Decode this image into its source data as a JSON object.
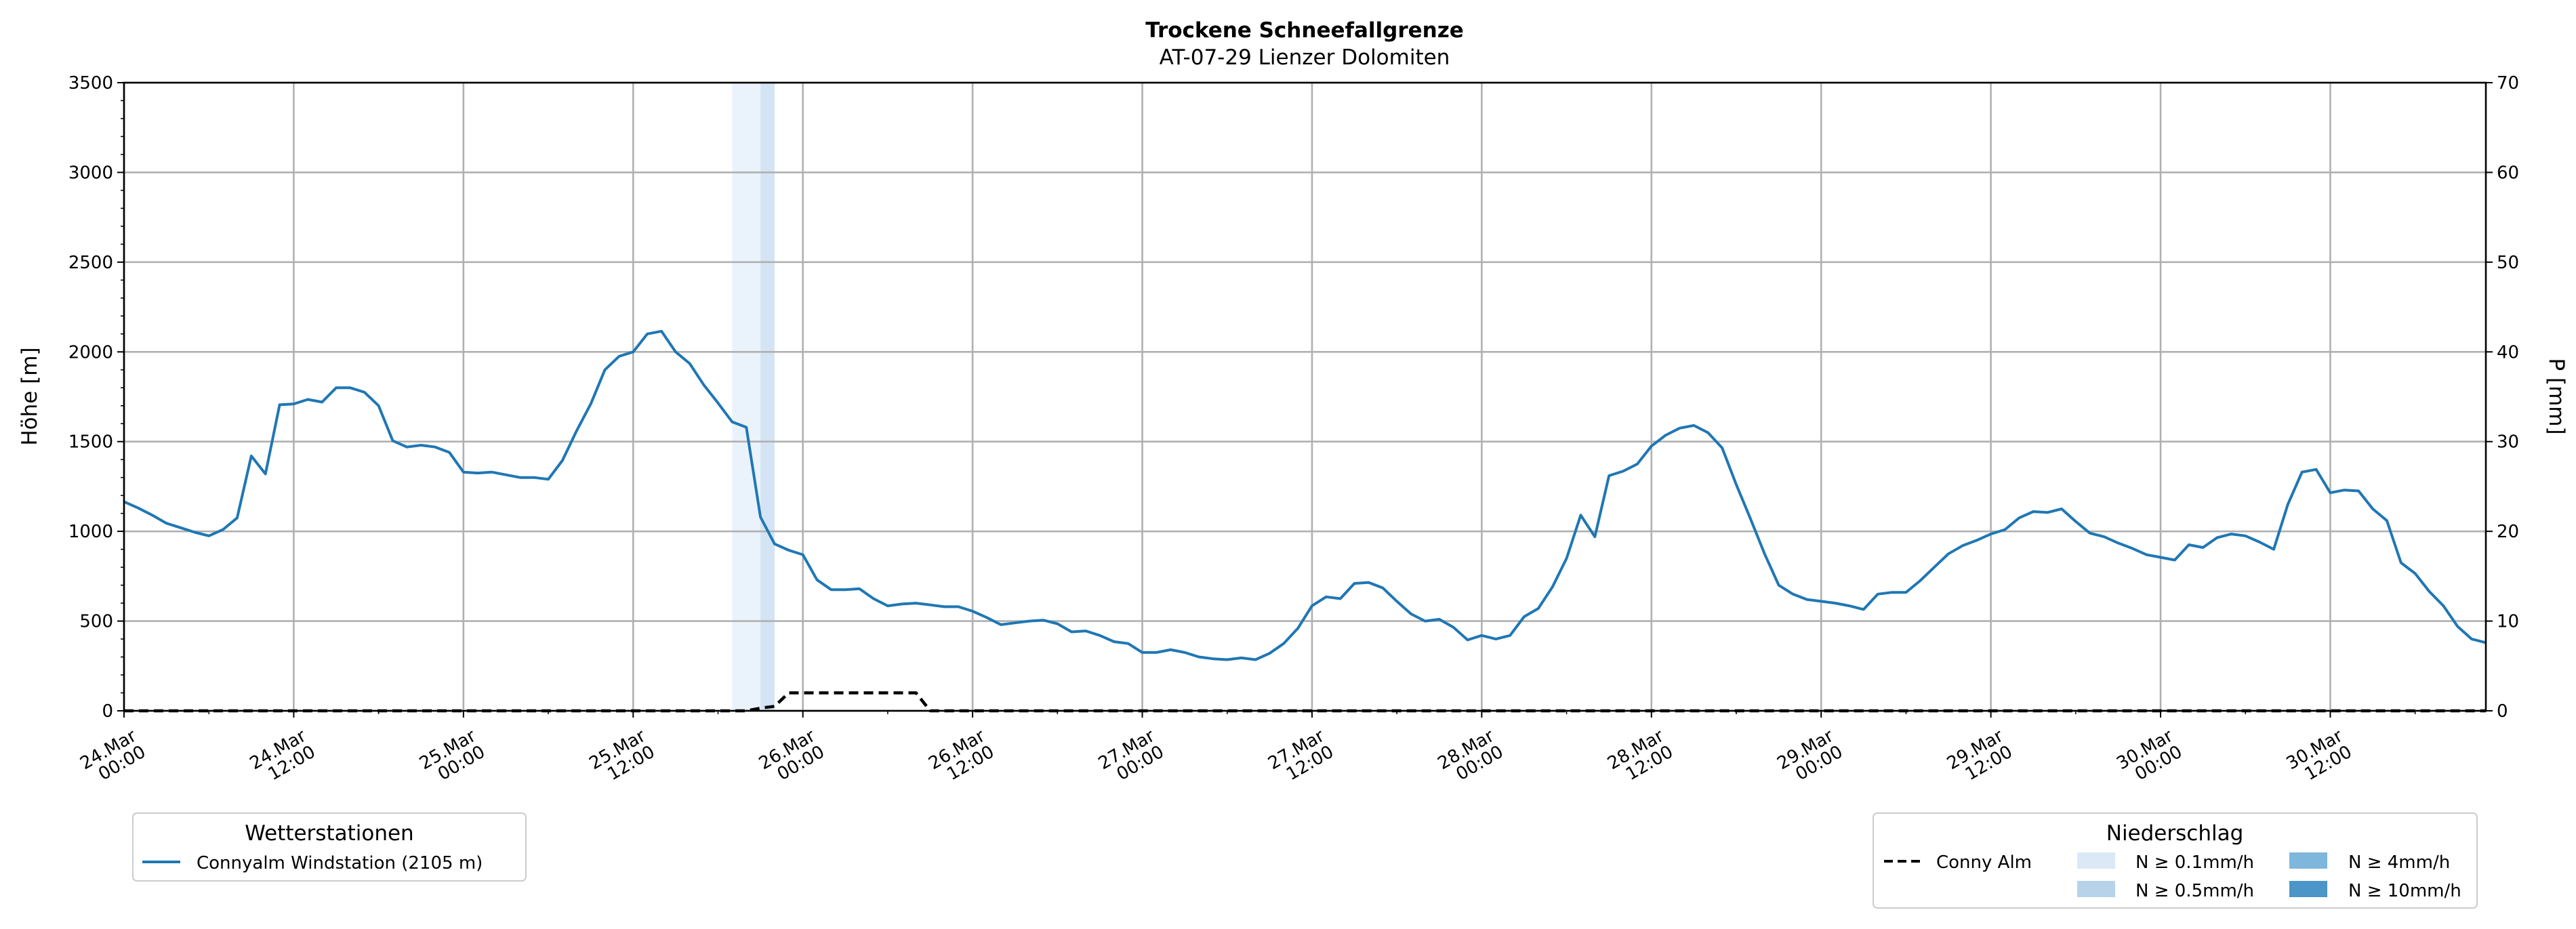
{
  "chart_data": {
    "type": "line",
    "title": "Trockene Schneefallgrenze",
    "subtitle": "AT-07-29 Lienzer Dolomiten",
    "ylabel": "Höhe [m]",
    "y2label": "P [mm]",
    "ylim": [
      0,
      3500
    ],
    "y2lim": [
      0,
      70
    ],
    "yticks": [
      0,
      500,
      1000,
      1500,
      2000,
      2500,
      3000,
      3500
    ],
    "y2ticks": [
      0,
      10,
      20,
      30,
      40,
      50,
      60,
      70
    ],
    "xlim": [
      0,
      167
    ],
    "x_unit": "hours since 24.Mar 00:00",
    "xticks": [
      {
        "x": 0,
        "l1": "24.Mar",
        "l2": "00:00"
      },
      {
        "x": 12,
        "l1": "24.Mar",
        "l2": "12:00"
      },
      {
        "x": 24,
        "l1": "25.Mar",
        "l2": "00:00"
      },
      {
        "x": 36,
        "l1": "25.Mar",
        "l2": "12:00"
      },
      {
        "x": 48,
        "l1": "26.Mar",
        "l2": "00:00"
      },
      {
        "x": 60,
        "l1": "26.Mar",
        "l2": "12:00"
      },
      {
        "x": 72,
        "l1": "27.Mar",
        "l2": "00:00"
      },
      {
        "x": 84,
        "l1": "27.Mar",
        "l2": "12:00"
      },
      {
        "x": 96,
        "l1": "28.Mar",
        "l2": "00:00"
      },
      {
        "x": 108,
        "l1": "28.Mar",
        "l2": "12:00"
      },
      {
        "x": 120,
        "l1": "29.Mar",
        "l2": "00:00"
      },
      {
        "x": 132,
        "l1": "29.Mar",
        "l2": "12:00"
      },
      {
        "x": 144,
        "l1": "30.Mar",
        "l2": "00:00"
      },
      {
        "x": 156,
        "l1": "30.Mar",
        "l2": "12:00"
      }
    ],
    "grid": true,
    "series": [
      {
        "name": "Connyalm Windstation (2105 m)",
        "axis": "left",
        "color": "#1f77b4",
        "style": "solid",
        "x": [
          0,
          1,
          2,
          3,
          4,
          5,
          6,
          7,
          8,
          9,
          10,
          11,
          12,
          13,
          14,
          15,
          16,
          17,
          18,
          19,
          20,
          21,
          22,
          23,
          24,
          25,
          26,
          27,
          28,
          29,
          30,
          31,
          32,
          33,
          34,
          35,
          36,
          37,
          38,
          39,
          40,
          41,
          42,
          43,
          44,
          45,
          46,
          47,
          48,
          49,
          50,
          51,
          52,
          53,
          54,
          55,
          56,
          57,
          58,
          59,
          60,
          61,
          62,
          63,
          64,
          65,
          66,
          67,
          68,
          69,
          70,
          71,
          72,
          73,
          74,
          75,
          76,
          77,
          78,
          79,
          80,
          81,
          82,
          83,
          84,
          85,
          86,
          87,
          88,
          89,
          90,
          91,
          92,
          93,
          94,
          95,
          96,
          97,
          98,
          99,
          100,
          101,
          102,
          103,
          104,
          105,
          106,
          107,
          108,
          109,
          110,
          111,
          112,
          113,
          114,
          115,
          116,
          117,
          118,
          119,
          120,
          121,
          122,
          123,
          124,
          125,
          126,
          127,
          128,
          129,
          130,
          131,
          132,
          133,
          134,
          135,
          136,
          137,
          138,
          139,
          140,
          141,
          142,
          143,
          144,
          145,
          146,
          147,
          148,
          149,
          150,
          151,
          152,
          153,
          154,
          155,
          156,
          157,
          158,
          159,
          160,
          161,
          162,
          163,
          164,
          165,
          166,
          167
        ],
        "values": [
          1165,
          1130,
          1090,
          1045,
          1020,
          995,
          975,
          1010,
          1075,
          1420,
          1320,
          1705,
          1710,
          1735,
          1720,
          1800,
          1800,
          1775,
          1700,
          1505,
          1470,
          1480,
          1470,
          1440,
          1330,
          1325,
          1330,
          1315,
          1300,
          1300,
          1290,
          1395,
          1560,
          1710,
          1900,
          1975,
          2000,
          2100,
          2115,
          2000,
          1935,
          1815,
          1715,
          1610,
          1580,
          1080,
          930,
          895,
          870,
          730,
          675,
          675,
          680,
          625,
          585,
          595,
          600,
          590,
          580,
          580,
          555,
          520,
          480,
          490,
          500,
          505,
          485,
          440,
          445,
          420,
          385,
          375,
          325,
          325,
          340,
          325,
          300,
          290,
          285,
          295,
          285,
          320,
          375,
          460,
          585,
          635,
          625,
          710,
          715,
          685,
          610,
          540,
          500,
          510,
          465,
          395,
          420,
          400,
          420,
          525,
          570,
          690,
          850,
          1090,
          970,
          1310,
          1335,
          1375,
          1475,
          1535,
          1575,
          1590,
          1550,
          1465,
          1260,
          1070,
          875,
          700,
          650,
          620,
          610,
          600,
          585,
          565,
          650,
          660,
          660,
          725,
          800,
          875,
          920,
          950,
          985,
          1010,
          1075,
          1110,
          1105,
          1125,
          1055,
          990,
          970,
          935,
          905,
          870,
          855,
          840,
          925,
          910,
          965,
          985,
          975,
          940,
          900,
          1150,
          1330,
          1345,
          1215,
          1230,
          1225,
          1125,
          1060,
          825,
          765,
          665,
          585,
          470,
          400,
          380
        ]
      },
      {
        "name": "Conny Alm",
        "axis": "right",
        "color": "#000000",
        "style": "dashed",
        "x": [
          0,
          44,
          45,
          46,
          47,
          48,
          49,
          50,
          51,
          52,
          53,
          54,
          55,
          56,
          57,
          167
        ],
        "values": [
          0,
          0,
          0.3,
          0.5,
          2,
          2,
          2,
          2,
          2,
          2,
          2,
          2,
          2,
          2,
          0,
          0
        ]
      }
    ],
    "precip_bands": [
      {
        "x0": 43,
        "x1": 45,
        "level": "N ≥ 0.1mm/h",
        "color": "#eaf2fb"
      },
      {
        "x0": 45,
        "x1": 46,
        "level": "N ≥ 0.5mm/h",
        "color": "#d4e4f4"
      }
    ],
    "legend_stations": {
      "title": "Wetterstationen",
      "entries": [
        "Connyalm Windstation (2105 m)"
      ],
      "placement": "bottom-left"
    },
    "legend_precip": {
      "title": "Niederschlag",
      "placement": "bottom-right",
      "line_entry": "Conny Alm",
      "levels": [
        {
          "label": "N ≥ 0.1mm/h",
          "color": "#dbe9f6"
        },
        {
          "label": "N ≥ 0.5mm/h",
          "color": "#b7d3ea"
        },
        {
          "label": "N ≥ 4mm/h",
          "color": "#7fb6dc"
        },
        {
          "label": "N ≥ 10mm/h",
          "color": "#4b95c8"
        }
      ]
    }
  }
}
